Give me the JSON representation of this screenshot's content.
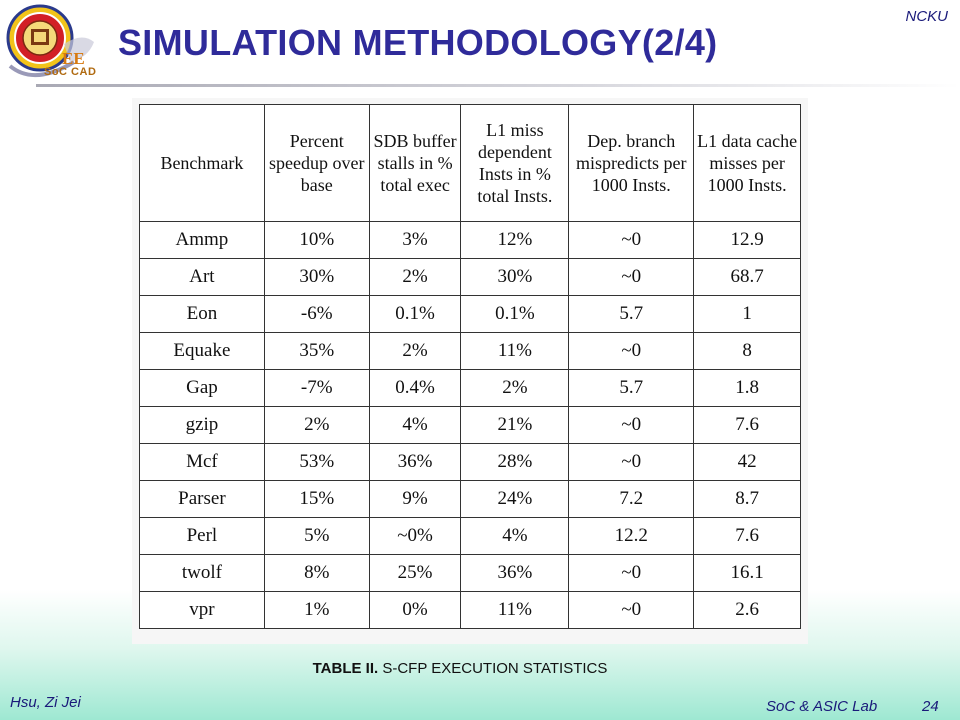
{
  "header": {
    "corner_label": "NCKU",
    "title": "SIMULATION METHODOLOGY(2/4)",
    "logo_text": "SoC CAD",
    "logo_badge": "EE"
  },
  "table": {
    "headers": [
      "Benchmark",
      "Percent speedup over base",
      "SDB buffer stalls in % total exec",
      "L1 miss dependent Insts in % total Insts.",
      "Dep. branch mispredicts per 1000 Insts.",
      "L1 data cache misses per 1000 Insts."
    ],
    "rows": [
      [
        "Ammp",
        "10%",
        "3%",
        "12%",
        "~0",
        "12.9"
      ],
      [
        "Art",
        "30%",
        "2%",
        "30%",
        "~0",
        "68.7"
      ],
      [
        "Eon",
        "-6%",
        "0.1%",
        "0.1%",
        "5.7",
        "1"
      ],
      [
        "Equake",
        "35%",
        "2%",
        "11%",
        "~0",
        "8"
      ],
      [
        "Gap",
        "-7%",
        "0.4%",
        "2%",
        "5.7",
        "1.8"
      ],
      [
        "gzip",
        "2%",
        "4%",
        "21%",
        "~0",
        "7.6"
      ],
      [
        "Mcf",
        "53%",
        "36%",
        "28%",
        "~0",
        "42"
      ],
      [
        "Parser",
        "15%",
        "9%",
        "24%",
        "7.2",
        "8.7"
      ],
      [
        "Perl",
        "5%",
        "~0%",
        "4%",
        "12.2",
        "7.6"
      ],
      [
        "twolf",
        "8%",
        "25%",
        "36%",
        "~0",
        "16.1"
      ],
      [
        "vpr",
        "1%",
        "0%",
        "11%",
        "~0",
        "2.6"
      ]
    ]
  },
  "caption": {
    "prefix": "TABLE II.",
    "text": " S-CFP EXECUTION STATISTICS"
  },
  "footer": {
    "author": "Hsu, Zi Jei",
    "lab": "SoC & ASIC Lab",
    "page": "24"
  },
  "colors": {
    "title": "#2f2b9a",
    "footer_text": "#1a1a7a",
    "footer_gradient": "#9ee8d2"
  }
}
